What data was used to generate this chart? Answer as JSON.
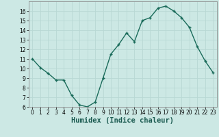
{
  "xlabel": "Humidex (Indice chaleur)",
  "x_values": [
    0,
    1,
    2,
    3,
    4,
    5,
    6,
    7,
    8,
    9,
    10,
    11,
    12,
    13,
    14,
    15,
    16,
    17,
    18,
    19,
    20,
    21,
    22,
    23
  ],
  "y_values": [
    11,
    10.1,
    9.5,
    8.8,
    8.8,
    7.2,
    6.2,
    6.0,
    6.5,
    9.0,
    11.5,
    12.5,
    13.7,
    12.8,
    15.0,
    15.3,
    16.3,
    16.5,
    16.0,
    15.3,
    14.3,
    12.3,
    10.8,
    9.6
  ],
  "line_color": "#1a6b5a",
  "marker_color": "#1a6b5a",
  "bg_color": "#cce8e4",
  "grid_color": "#b8d8d4",
  "ylim": [
    6,
    17
  ],
  "xlim": [
    -0.5,
    23.5
  ],
  "yticks": [
    6,
    7,
    8,
    9,
    10,
    11,
    12,
    13,
    14,
    15,
    16
  ],
  "xticks": [
    0,
    1,
    2,
    3,
    4,
    5,
    6,
    7,
    8,
    9,
    10,
    11,
    12,
    13,
    14,
    15,
    16,
    17,
    18,
    19,
    20,
    21,
    22,
    23
  ],
  "tick_fontsize": 5.5,
  "label_fontsize": 7.5
}
